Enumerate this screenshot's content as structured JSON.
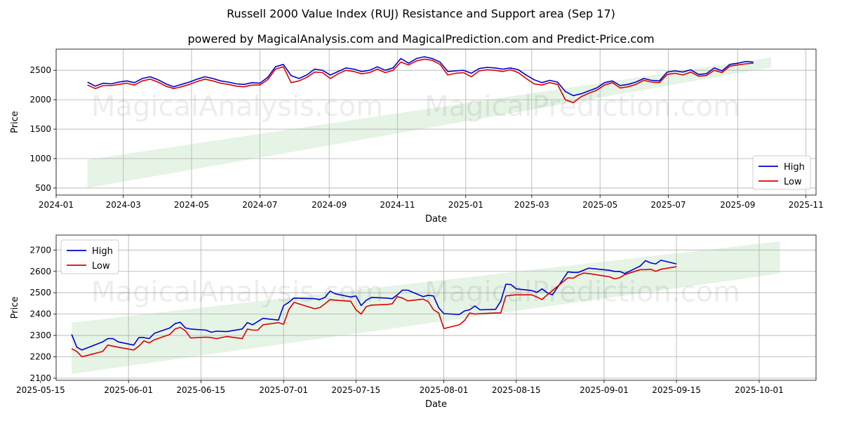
{
  "title": "Russell 2000 Value Index (RUJ) Resistance and Support area (Sep 17)",
  "subtitle": "powered by MagicalAnalysis.com and MagicalPrediction.com and Predict-Price.com",
  "watermarks": [
    "MagicalAnalysis.com",
    "MagicalPrediction.com"
  ],
  "colors": {
    "high": "#0000cc",
    "low": "#dd0000",
    "band": "#d4ecd4",
    "grid": "#b0b0b0"
  },
  "chart_data": [
    {
      "type": "line",
      "xlabel": "Date",
      "ylabel": "Price",
      "xlim": [
        "2024-01-01",
        "2025-11-10"
      ],
      "ylim": [
        380,
        2860
      ],
      "grid": true,
      "legend_position": "lower-right",
      "x_ticks": [
        "2024-01",
        "2024-03",
        "2024-05",
        "2024-07",
        "2024-09",
        "2024-11",
        "2025-01",
        "2025-03",
        "2025-05",
        "2025-07",
        "2025-09",
        "2025-11"
      ],
      "y_ticks": [
        500,
        1000,
        1500,
        2000,
        2500
      ],
      "band": {
        "x_start": "2024-01-29",
        "x_end": "2025-10-01",
        "lower": [
          500,
          2550
        ],
        "upper": [
          980,
          2720
        ]
      },
      "series": [
        {
          "name": "High",
          "x": [
            "2024-01-29",
            "2024-02-05",
            "2024-02-12",
            "2024-02-19",
            "2024-02-26",
            "2024-03-04",
            "2024-03-11",
            "2024-03-18",
            "2024-03-25",
            "2024-04-01",
            "2024-04-08",
            "2024-04-15",
            "2024-04-22",
            "2024-04-29",
            "2024-05-06",
            "2024-05-13",
            "2024-05-20",
            "2024-05-27",
            "2024-06-03",
            "2024-06-10",
            "2024-06-17",
            "2024-06-24",
            "2024-07-01",
            "2024-07-08",
            "2024-07-15",
            "2024-07-22",
            "2024-07-29",
            "2024-08-05",
            "2024-08-12",
            "2024-08-19",
            "2024-08-26",
            "2024-09-02",
            "2024-09-09",
            "2024-09-16",
            "2024-09-23",
            "2024-09-30",
            "2024-10-07",
            "2024-10-14",
            "2024-10-21",
            "2024-10-28",
            "2024-11-04",
            "2024-11-11",
            "2024-11-18",
            "2024-11-25",
            "2024-12-02",
            "2024-12-09",
            "2024-12-16",
            "2024-12-23",
            "2024-12-30",
            "2025-01-06",
            "2025-01-13",
            "2025-01-20",
            "2025-01-27",
            "2025-02-03",
            "2025-02-10",
            "2025-02-17",
            "2025-02-24",
            "2025-03-03",
            "2025-03-10",
            "2025-03-17",
            "2025-03-24",
            "2025-03-31",
            "2025-04-07",
            "2025-04-14",
            "2025-04-21",
            "2025-04-28",
            "2025-05-05",
            "2025-05-12",
            "2025-05-19",
            "2025-05-26",
            "2025-06-02",
            "2025-06-09",
            "2025-06-16",
            "2025-06-23",
            "2025-06-30",
            "2025-07-07",
            "2025-07-14",
            "2025-07-21",
            "2025-07-28",
            "2025-08-04",
            "2025-08-11",
            "2025-08-18",
            "2025-08-25",
            "2025-09-01",
            "2025-09-08",
            "2025-09-15"
          ],
          "values": [
            2300,
            2230,
            2280,
            2270,
            2300,
            2320,
            2290,
            2360,
            2390,
            2340,
            2270,
            2220,
            2260,
            2300,
            2350,
            2390,
            2360,
            2320,
            2300,
            2270,
            2260,
            2290,
            2280,
            2380,
            2560,
            2600,
            2410,
            2360,
            2420,
            2520,
            2500,
            2420,
            2480,
            2540,
            2520,
            2480,
            2500,
            2560,
            2500,
            2540,
            2700,
            2620,
            2700,
            2730,
            2700,
            2640,
            2480,
            2490,
            2500,
            2450,
            2530,
            2550,
            2540,
            2520,
            2540,
            2510,
            2420,
            2340,
            2290,
            2330,
            2300,
            2140,
            2070,
            2100,
            2150,
            2200,
            2290,
            2320,
            2240,
            2260,
            2300,
            2360,
            2330,
            2320,
            2470,
            2490,
            2470,
            2510,
            2430,
            2440,
            2540,
            2490,
            2600,
            2620,
            2650,
            2640
          ]
        },
        {
          "name": "Low",
          "x": [
            "2024-01-29",
            "2024-02-05",
            "2024-02-12",
            "2024-02-19",
            "2024-02-26",
            "2024-03-04",
            "2024-03-11",
            "2024-03-18",
            "2024-03-25",
            "2024-04-01",
            "2024-04-08",
            "2024-04-15",
            "2024-04-22",
            "2024-04-29",
            "2024-05-06",
            "2024-05-13",
            "2024-05-20",
            "2024-05-27",
            "2024-06-03",
            "2024-06-10",
            "2024-06-17",
            "2024-06-24",
            "2024-07-01",
            "2024-07-08",
            "2024-07-15",
            "2024-07-22",
            "2024-07-29",
            "2024-08-05",
            "2024-08-12",
            "2024-08-19",
            "2024-08-26",
            "2024-09-02",
            "2024-09-09",
            "2024-09-16",
            "2024-09-23",
            "2024-09-30",
            "2024-10-07",
            "2024-10-14",
            "2024-10-21",
            "2024-10-28",
            "2024-11-04",
            "2024-11-11",
            "2024-11-18",
            "2024-11-25",
            "2024-12-02",
            "2024-12-09",
            "2024-12-16",
            "2024-12-23",
            "2024-12-30",
            "2025-01-06",
            "2025-01-13",
            "2025-01-20",
            "2025-01-27",
            "2025-02-03",
            "2025-02-10",
            "2025-02-17",
            "2025-02-24",
            "2025-03-03",
            "2025-03-10",
            "2025-03-17",
            "2025-03-24",
            "2025-03-31",
            "2025-04-07",
            "2025-04-14",
            "2025-04-21",
            "2025-04-28",
            "2025-05-05",
            "2025-05-12",
            "2025-05-19",
            "2025-05-26",
            "2025-06-02",
            "2025-06-09",
            "2025-06-16",
            "2025-06-23",
            "2025-06-30",
            "2025-07-07",
            "2025-07-14",
            "2025-07-21",
            "2025-07-28",
            "2025-08-04",
            "2025-08-11",
            "2025-08-18",
            "2025-08-25",
            "2025-09-01",
            "2025-09-08",
            "2025-09-15"
          ],
          "values": [
            2250,
            2190,
            2240,
            2240,
            2260,
            2280,
            2250,
            2320,
            2350,
            2300,
            2230,
            2190,
            2220,
            2260,
            2310,
            2350,
            2320,
            2280,
            2260,
            2230,
            2220,
            2250,
            2250,
            2340,
            2520,
            2560,
            2290,
            2320,
            2380,
            2470,
            2460,
            2360,
            2440,
            2500,
            2480,
            2440,
            2460,
            2520,
            2460,
            2500,
            2640,
            2590,
            2660,
            2690,
            2670,
            2600,
            2420,
            2450,
            2460,
            2390,
            2490,
            2510,
            2500,
            2480,
            2510,
            2460,
            2360,
            2270,
            2250,
            2290,
            2260,
            2000,
            1950,
            2050,
            2110,
            2160,
            2250,
            2290,
            2200,
            2220,
            2260,
            2330,
            2300,
            2290,
            2430,
            2450,
            2420,
            2470,
            2400,
            2410,
            2500,
            2460,
            2570,
            2590,
            2610,
            2620
          ]
        }
      ]
    },
    {
      "type": "line",
      "xlabel": "Date",
      "ylabel": "Price",
      "xlim": [
        "2025-05-18",
        "2025-10-12"
      ],
      "ylim": [
        2090,
        2770
      ],
      "grid": true,
      "legend_position": "upper-left",
      "x_ticks": [
        "2025-05-15",
        "2025-06-01",
        "2025-06-15",
        "2025-07-01",
        "2025-07-15",
        "2025-08-01",
        "2025-08-15",
        "2025-09-01",
        "2025-09-15",
        "2025-10-01"
      ],
      "y_ticks": [
        2100,
        2200,
        2300,
        2400,
        2500,
        2600,
        2700
      ],
      "band": {
        "x_start": "2025-05-21",
        "x_end": "2025-10-05",
        "lower": [
          2120,
          2590
        ],
        "upper": [
          2360,
          2740
        ]
      },
      "series": [
        {
          "name": "High",
          "x": [
            "2025-05-21",
            "2025-05-22",
            "2025-05-23",
            "2025-05-27",
            "2025-05-28",
            "2025-05-29",
            "2025-05-30",
            "2025-06-02",
            "2025-06-03",
            "2025-06-04",
            "2025-06-05",
            "2025-06-06",
            "2025-06-09",
            "2025-06-10",
            "2025-06-11",
            "2025-06-12",
            "2025-06-13",
            "2025-06-16",
            "2025-06-17",
            "2025-06-18",
            "2025-06-20",
            "2025-06-23",
            "2025-06-24",
            "2025-06-25",
            "2025-06-26",
            "2025-06-27",
            "2025-06-30",
            "2025-07-01",
            "2025-07-02",
            "2025-07-03",
            "2025-07-07",
            "2025-07-08",
            "2025-07-09",
            "2025-07-10",
            "2025-07-11",
            "2025-07-14",
            "2025-07-15",
            "2025-07-16",
            "2025-07-17",
            "2025-07-18",
            "2025-07-21",
            "2025-07-22",
            "2025-07-23",
            "2025-07-24",
            "2025-07-25",
            "2025-07-28",
            "2025-07-29",
            "2025-07-30",
            "2025-07-31",
            "2025-08-01",
            "2025-08-04",
            "2025-08-05",
            "2025-08-06",
            "2025-08-07",
            "2025-08-08",
            "2025-08-11",
            "2025-08-12",
            "2025-08-13",
            "2025-08-14",
            "2025-08-15",
            "2025-08-18",
            "2025-08-19",
            "2025-08-20",
            "2025-08-21",
            "2025-08-22",
            "2025-08-25",
            "2025-08-26",
            "2025-08-27",
            "2025-08-28",
            "2025-08-29",
            "2025-09-02",
            "2025-09-03",
            "2025-09-04",
            "2025-09-05",
            "2025-09-08",
            "2025-09-09",
            "2025-09-10",
            "2025-09-11",
            "2025-09-12",
            "2025-09-15"
          ],
          "values": [
            2305,
            2245,
            2232,
            2270,
            2285,
            2285,
            2270,
            2255,
            2290,
            2290,
            2285,
            2310,
            2335,
            2355,
            2362,
            2335,
            2330,
            2325,
            2315,
            2320,
            2318,
            2330,
            2360,
            2350,
            2365,
            2380,
            2372,
            2440,
            2455,
            2475,
            2472,
            2468,
            2478,
            2508,
            2495,
            2480,
            2485,
            2440,
            2465,
            2478,
            2475,
            2472,
            2490,
            2512,
            2512,
            2482,
            2488,
            2485,
            2430,
            2402,
            2398,
            2415,
            2420,
            2438,
            2420,
            2422,
            2460,
            2540,
            2538,
            2518,
            2510,
            2502,
            2518,
            2500,
            2490,
            2598,
            2595,
            2595,
            2605,
            2615,
            2605,
            2600,
            2600,
            2590,
            2625,
            2650,
            2640,
            2635,
            2652,
            2635
          ]
        },
        {
          "name": "Low",
          "x": [
            "2025-05-21",
            "2025-05-22",
            "2025-05-23",
            "2025-05-27",
            "2025-05-28",
            "2025-05-29",
            "2025-05-30",
            "2025-06-02",
            "2025-06-03",
            "2025-06-04",
            "2025-06-05",
            "2025-06-06",
            "2025-06-09",
            "2025-06-10",
            "2025-06-11",
            "2025-06-12",
            "2025-06-13",
            "2025-06-16",
            "2025-06-17",
            "2025-06-18",
            "2025-06-20",
            "2025-06-23",
            "2025-06-24",
            "2025-06-25",
            "2025-06-26",
            "2025-06-27",
            "2025-06-30",
            "2025-07-01",
            "2025-07-02",
            "2025-07-03",
            "2025-07-07",
            "2025-07-08",
            "2025-07-09",
            "2025-07-10",
            "2025-07-11",
            "2025-07-14",
            "2025-07-15",
            "2025-07-16",
            "2025-07-17",
            "2025-07-18",
            "2025-07-21",
            "2025-07-22",
            "2025-07-23",
            "2025-07-24",
            "2025-07-25",
            "2025-07-28",
            "2025-07-29",
            "2025-07-30",
            "2025-07-31",
            "2025-08-01",
            "2025-08-04",
            "2025-08-05",
            "2025-08-06",
            "2025-08-07",
            "2025-08-08",
            "2025-08-11",
            "2025-08-12",
            "2025-08-13",
            "2025-08-14",
            "2025-08-15",
            "2025-08-18",
            "2025-08-19",
            "2025-08-20",
            "2025-08-21",
            "2025-08-22",
            "2025-08-25",
            "2025-08-26",
            "2025-08-27",
            "2025-08-28",
            "2025-08-29",
            "2025-09-02",
            "2025-09-03",
            "2025-09-04",
            "2025-09-05",
            "2025-09-08",
            "2025-09-09",
            "2025-09-10",
            "2025-09-11",
            "2025-09-12",
            "2025-09-15"
          ],
          "values": [
            2238,
            2225,
            2200,
            2225,
            2255,
            2250,
            2245,
            2232,
            2250,
            2275,
            2265,
            2280,
            2305,
            2330,
            2338,
            2322,
            2288,
            2292,
            2290,
            2285,
            2295,
            2285,
            2330,
            2325,
            2325,
            2350,
            2360,
            2352,
            2420,
            2455,
            2425,
            2430,
            2448,
            2468,
            2465,
            2460,
            2420,
            2400,
            2435,
            2442,
            2445,
            2448,
            2482,
            2475,
            2462,
            2470,
            2458,
            2420,
            2405,
            2332,
            2350,
            2370,
            2405,
            2400,
            2402,
            2405,
            2405,
            2485,
            2488,
            2490,
            2490,
            2480,
            2468,
            2490,
            2510,
            2570,
            2568,
            2582,
            2592,
            2590,
            2575,
            2565,
            2570,
            2585,
            2608,
            2608,
            2610,
            2600,
            2610,
            2622
          ]
        }
      ]
    }
  ]
}
